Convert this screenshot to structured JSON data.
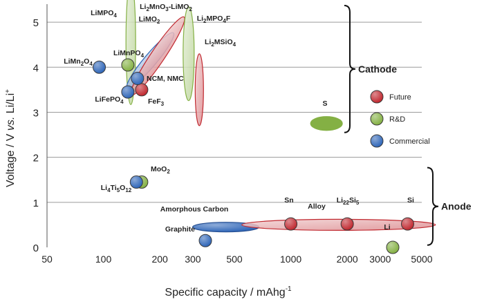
{
  "chart_data": {
    "type": "scatter",
    "xlabel": "Specific capacity / mAhg",
    "xlabel_sup": "-1",
    "ylabel_parts": [
      "Voltage  / V ",
      "vs.",
      " Li/Li",
      "+"
    ],
    "x_scale": "log",
    "xlim": [
      50,
      5000
    ],
    "ylim": [
      0,
      5.4
    ],
    "x_ticks": [
      50,
      100,
      200,
      300,
      500,
      1000,
      2000,
      3000,
      5000
    ],
    "x_tick_labels": [
      "50",
      "100",
      "200",
      "300",
      "500",
      "1000",
      "2000",
      "3000",
      "5000"
    ],
    "y_ticks": [
      0,
      1,
      2,
      3,
      4,
      5
    ],
    "y_tick_labels": [
      "0",
      "1",
      "2",
      "3",
      "4",
      "5"
    ],
    "grid": "horizontal",
    "colors": {
      "Future": "#c0282f",
      "R&D": "#84b044",
      "Commercial": "#2f66b8"
    },
    "series": [
      {
        "name": "Future",
        "points": [
          {
            "label": "FeF3",
            "x": 160,
            "y": 3.5
          },
          {
            "label": "Sn",
            "x": 1000,
            "y": 0.52
          },
          {
            "label": "Li22Si5",
            "x": 2000,
            "y": 0.52
          },
          {
            "label": "Si",
            "x": 4200,
            "y": 0.52
          }
        ]
      },
      {
        "name": "R&D",
        "points": [
          {
            "label": "LiMnPO4",
            "x": 135,
            "y": 4.05
          },
          {
            "label": "MoO2",
            "x": 160,
            "y": 1.45
          },
          {
            "label": "Li",
            "x": 3500,
            "y": 0.0
          }
        ]
      },
      {
        "name": "Commercial",
        "points": [
          {
            "label": "LiMn2O4",
            "x": 95,
            "y": 4.0
          },
          {
            "label": "LiFePO4",
            "x": 135,
            "y": 3.45
          },
          {
            "label": "NCM, NMC",
            "x": 152,
            "y": 3.75
          },
          {
            "label": "Li4Ti5O12",
            "x": 150,
            "y": 1.45
          },
          {
            "label": "Graphite",
            "x": 350,
            "y": 0.15
          }
        ]
      }
    ],
    "regions": [
      {
        "label": "LiMPO4",
        "series": "R&D",
        "x": 140,
        "y": 4.55
      },
      {
        "label": "LiMO2",
        "series": "Commercial",
        "x": 178,
        "y": 4.15
      },
      {
        "label": "Li2MnO3-LiMO2",
        "series": "Future",
        "x": 195,
        "y": 4.25
      },
      {
        "label": "Li2MPO4F",
        "series": "R&D",
        "x": 285,
        "y": 4.3
      },
      {
        "label": "Li2MSiO4",
        "series": "Future",
        "x": 325,
        "y": 3.5
      },
      {
        "label": "S",
        "series": "R&D",
        "x": 1550,
        "y": 2.75
      },
      {
        "label": "Amorphous Carbon",
        "series": "Commercial",
        "x": 450,
        "y": 0.45
      },
      {
        "label": "Alloy",
        "series": "Future",
        "x": 1800,
        "y": 0.5
      }
    ],
    "groups": [
      {
        "label": "Cathode",
        "ylim": [
          2.55,
          5.4
        ]
      },
      {
        "label": "Anode",
        "ylim": [
          0.05,
          1.8
        ]
      }
    ],
    "legend": {
      "placement": "right",
      "entries": [
        "Future",
        "R&D",
        "Commercial"
      ]
    }
  }
}
